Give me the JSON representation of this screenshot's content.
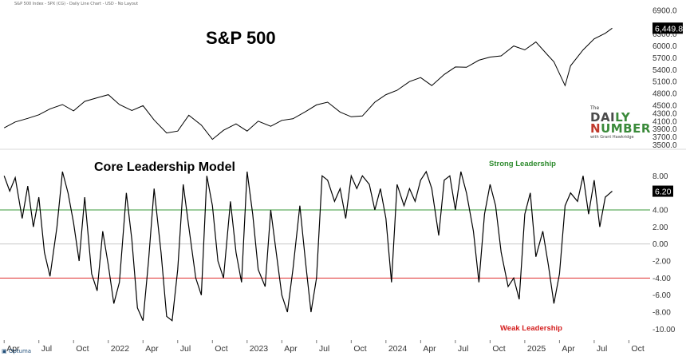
{
  "header_text": "S&P 500 Index - SPX (CG) - Daily Line Chart - USD - No Layout",
  "brand": "Optuma",
  "logo": {
    "the": "The",
    "daily_a": "DAI",
    "daily_b": "LY",
    "number_a": "N",
    "number_b": "UMBER",
    "with": "with Grant Hawkridge"
  },
  "colors": {
    "price_line": "#000000",
    "strong_line": "#3a9a3a",
    "weak_line": "#e03030",
    "zero_line": "#c8c8c8",
    "strong_text": "#2e8b2e",
    "weak_text": "#d42020",
    "last_box": "#000000"
  },
  "chart_data": [
    {
      "type": "line",
      "title": "S&P 500",
      "xlabel": "",
      "ylabel": "",
      "ylim": [
        3450,
        7000
      ],
      "yticks": [
        "6900.0",
        "6500.0",
        "6300.0",
        "6000.0",
        "5700.0",
        "5400.0",
        "5100.0",
        "4800.0",
        "4500.0",
        "4300.0",
        "4100.0",
        "3900.0",
        "3700.0",
        "3500.0"
      ],
      "ytick_values": [
        6900,
        6500,
        6300,
        6000,
        5700,
        5400,
        5100,
        4800,
        4500,
        4300,
        4100,
        3900,
        3700,
        3500
      ],
      "last_value_label": "6,449.8",
      "last_value": 6449.8,
      "x": [
        2021.25,
        2021.33,
        2021.42,
        2021.5,
        2021.58,
        2021.67,
        2021.75,
        2021.83,
        2021.92,
        2022.0,
        2022.08,
        2022.17,
        2022.25,
        2022.33,
        2022.42,
        2022.5,
        2022.58,
        2022.67,
        2022.75,
        2022.83,
        2022.92,
        2023.0,
        2023.08,
        2023.17,
        2023.25,
        2023.33,
        2023.42,
        2023.5,
        2023.58,
        2023.67,
        2023.75,
        2023.83,
        2023.92,
        2024.0,
        2024.08,
        2024.17,
        2024.25,
        2024.33,
        2024.42,
        2024.5,
        2024.58,
        2024.67,
        2024.75,
        2024.83,
        2024.92,
        2025.0,
        2025.08,
        2025.17,
        2025.21,
        2025.25,
        2025.29,
        2025.33,
        2025.42,
        2025.5,
        2025.58,
        2025.63
      ],
      "y": [
        3930,
        4080,
        4170,
        4260,
        4410,
        4520,
        4360,
        4600,
        4690,
        4770,
        4520,
        4370,
        4490,
        4130,
        3800,
        3850,
        4250,
        4000,
        3640,
        3870,
        4030,
        3850,
        4100,
        3970,
        4120,
        4160,
        4340,
        4510,
        4580,
        4330,
        4210,
        4230,
        4580,
        4770,
        4880,
        5100,
        5200,
        5000,
        5280,
        5470,
        5460,
        5640,
        5720,
        5750,
        6000,
        5900,
        6100,
        5750,
        5600,
        5300,
        5000,
        5500,
        5900,
        6180,
        6320,
        6449.8
      ]
    },
    {
      "type": "line",
      "title": "Core Leadership Model",
      "xlabel": "",
      "ylabel": "",
      "ylim": [
        -11,
        10
      ],
      "yticks": [
        "8.00",
        "6.00",
        "4.00",
        "2.00",
        "0.00",
        "-2.00",
        "-4.00",
        "-6.00",
        "-8.00",
        "-10.00"
      ],
      "ytick_values": [
        8,
        6,
        4,
        2,
        0,
        -2,
        -4,
        -6,
        -8,
        -10
      ],
      "annotations": [
        "Strong Leadership",
        "Weak Leadership"
      ],
      "reference_lines": [
        4,
        0,
        -4
      ],
      "last_value_label": "6.20",
      "last_value": 6.2,
      "x": [
        2021.25,
        2021.29,
        2021.33,
        2021.38,
        2021.42,
        2021.46,
        2021.5,
        2021.54,
        2021.58,
        2021.63,
        2021.67,
        2021.71,
        2021.75,
        2021.79,
        2021.83,
        2021.88,
        2021.92,
        2021.96,
        2022.0,
        2022.04,
        2022.08,
        2022.13,
        2022.17,
        2022.21,
        2022.25,
        2022.29,
        2022.33,
        2022.38,
        2022.42,
        2022.46,
        2022.5,
        2022.54,
        2022.58,
        2022.63,
        2022.67,
        2022.71,
        2022.75,
        2022.79,
        2022.83,
        2022.88,
        2022.92,
        2022.96,
        2023.0,
        2023.04,
        2023.08,
        2023.13,
        2023.17,
        2023.21,
        2023.25,
        2023.29,
        2023.33,
        2023.38,
        2023.42,
        2023.46,
        2023.5,
        2023.54,
        2023.58,
        2023.63,
        2023.67,
        2023.71,
        2023.75,
        2023.79,
        2023.83,
        2023.88,
        2023.92,
        2023.96,
        2024.0,
        2024.04,
        2024.08,
        2024.13,
        2024.17,
        2024.21,
        2024.25,
        2024.29,
        2024.33,
        2024.38,
        2024.42,
        2024.46,
        2024.5,
        2024.54,
        2024.58,
        2024.63,
        2024.67,
        2024.71,
        2024.75,
        2024.79,
        2024.83,
        2024.88,
        2024.92,
        2024.96,
        2025.0,
        2025.04,
        2025.08,
        2025.13,
        2025.17,
        2025.21,
        2025.25,
        2025.29,
        2025.33,
        2025.38,
        2025.42,
        2025.46,
        2025.5,
        2025.54,
        2025.58,
        2025.63
      ],
      "y": [
        8.0,
        6.2,
        7.8,
        3.0,
        6.8,
        2.0,
        5.5,
        -1.0,
        -3.8,
        2.0,
        8.5,
        6.0,
        2.5,
        -2.0,
        5.5,
        -3.5,
        -5.5,
        1.5,
        -2.5,
        -7.0,
        -4.5,
        6.0,
        0.5,
        -7.5,
        -9.0,
        -2.0,
        6.5,
        -1.0,
        -8.5,
        -9.0,
        -3.0,
        7.0,
        2.0,
        -4.0,
        -6.0,
        8.0,
        4.5,
        -2.0,
        -4.0,
        5.0,
        -1.0,
        -4.5,
        8.5,
        3.5,
        -3.0,
        -5.0,
        4.0,
        -1.0,
        -6.0,
        -8.0,
        -3.0,
        4.5,
        -2.0,
        -8.0,
        -4.0,
        8.0,
        7.5,
        5.0,
        6.5,
        3.0,
        8.0,
        6.5,
        8.0,
        7.0,
        4.0,
        6.5,
        3.0,
        -4.5,
        7.0,
        4.5,
        6.5,
        5.0,
        7.5,
        8.5,
        6.5,
        1.0,
        7.5,
        8.0,
        4.0,
        8.5,
        6.0,
        1.5,
        -4.5,
        3.5,
        7.0,
        4.5,
        -1.0,
        -5.0,
        -4.0,
        -6.5,
        3.5,
        6.0,
        -1.5,
        1.5,
        -2.5,
        -7.0,
        -3.5,
        4.5,
        6.0,
        5.0,
        8.0,
        3.5,
        7.5,
        2.0,
        5.5,
        6.2
      ]
    }
  ],
  "x_axis": {
    "labels": [
      "Apr",
      "Jul",
      "Oct",
      "2022",
      "Apr",
      "Jul",
      "Oct",
      "2023",
      "Apr",
      "Jul",
      "Oct",
      "2024",
      "Apr",
      "Jul",
      "Oct",
      "2025",
      "Apr",
      "Jul",
      "Oct"
    ],
    "values": [
      2021.25,
      2021.5,
      2021.75,
      2022.0,
      2022.25,
      2022.5,
      2022.75,
      2023.0,
      2023.25,
      2023.5,
      2023.75,
      2024.0,
      2024.25,
      2024.5,
      2024.75,
      2025.0,
      2025.25,
      2025.5,
      2025.75
    ]
  }
}
